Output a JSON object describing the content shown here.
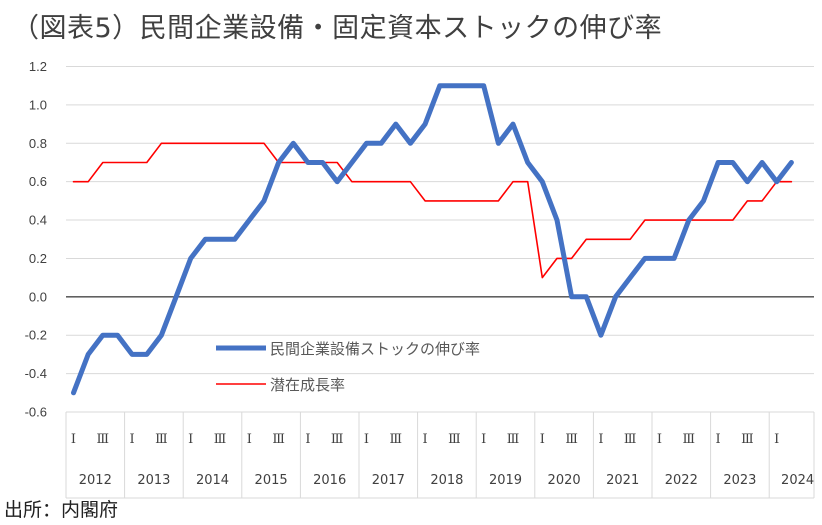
{
  "title": "（図表5）民間企業設備・固定資本ストックの伸び率",
  "source": "出所：内閣府",
  "colors": {
    "series1": "#4472c4",
    "series2": "#ff0000",
    "grid": "#d9d9d9",
    "zero": "#000000"
  },
  "chart_data": {
    "type": "line",
    "title": "（図表5）民間企業設備・固定資本ストックの伸び率",
    "xlabel": "",
    "ylabel": "",
    "ylim": [
      -0.6,
      1.2
    ],
    "yticks": [
      "1.2",
      "1.0",
      "0.8",
      "0.6",
      "0.4",
      "0.2",
      "0.0",
      "-0.2",
      "-0.4",
      "-0.6"
    ],
    "ytick_values": [
      1.2,
      1.0,
      0.8,
      0.6,
      0.4,
      0.2,
      0.0,
      -0.2,
      -0.4,
      -0.6
    ],
    "years": [
      "2012",
      "2013",
      "2014",
      "2015",
      "2016",
      "2017",
      "2018",
      "2019",
      "2020",
      "2021",
      "2022",
      "2023",
      "2024"
    ],
    "quarter_marks": [
      "Ⅰ",
      "Ⅲ"
    ],
    "legend_position": "center-left",
    "series": [
      {
        "name": "民間企業設備ストックの伸び率",
        "values": [
          -0.5,
          -0.3,
          -0.2,
          -0.2,
          -0.3,
          -0.3,
          -0.2,
          0.0,
          0.2,
          0.3,
          0.3,
          0.3,
          0.4,
          0.5,
          0.7,
          0.8,
          0.7,
          0.7,
          0.6,
          0.7,
          0.8,
          0.8,
          0.9,
          0.8,
          0.9,
          1.1,
          1.1,
          1.1,
          1.1,
          0.8,
          0.9,
          0.7,
          0.6,
          0.4,
          0.0,
          0.0,
          -0.2,
          0.0,
          0.1,
          0.2,
          0.2,
          0.2,
          0.4,
          0.5,
          0.7,
          0.7,
          0.6,
          0.7,
          0.6,
          0.7
        ]
      },
      {
        "name": "潜在成長率",
        "values": [
          0.6,
          0.6,
          0.7,
          0.7,
          0.7,
          0.7,
          0.8,
          0.8,
          0.8,
          0.8,
          0.8,
          0.8,
          0.8,
          0.8,
          0.7,
          0.7,
          0.7,
          0.7,
          0.7,
          0.6,
          0.6,
          0.6,
          0.6,
          0.6,
          0.5,
          0.5,
          0.5,
          0.5,
          0.5,
          0.5,
          0.6,
          0.6,
          0.1,
          0.2,
          0.2,
          0.3,
          0.3,
          0.3,
          0.3,
          0.4,
          0.4,
          0.4,
          0.4,
          0.4,
          0.4,
          0.4,
          0.5,
          0.5,
          0.6,
          0.6
        ]
      }
    ]
  }
}
